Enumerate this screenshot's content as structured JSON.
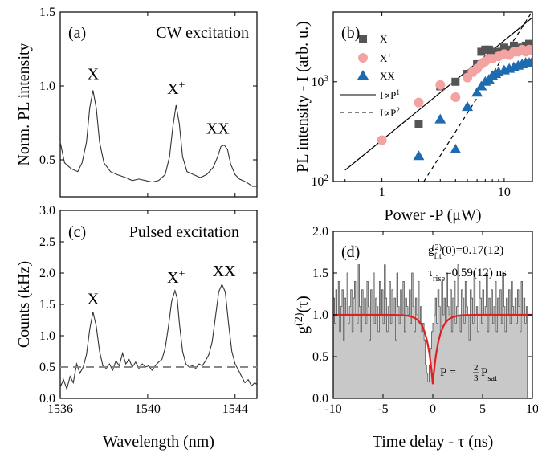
{
  "chart_data": [
    {
      "panel": "(a)",
      "type": "line",
      "title": "CW excitation",
      "ylabel": "Norm. PL intensity",
      "xlim": [
        1536,
        1545
      ],
      "ylim": [
        0.25,
        1.5
      ],
      "yticks": [
        "0.5",
        "1.0",
        "1.5"
      ],
      "peak_labels": [
        {
          "text": "X",
          "x": 1537.5,
          "y": 0.97
        },
        {
          "text": "X",
          "sup": "+",
          "x": 1541.3,
          "y": 0.87
        },
        {
          "text": "XX",
          "x": 1543.5,
          "y": 0.6
        }
      ],
      "series": [
        {
          "values_note": "",
          "x": [
            1536.0,
            1536.2,
            1536.5,
            1536.8,
            1537.0,
            1537.2,
            1537.35,
            1537.5,
            1537.65,
            1537.8,
            1538.0,
            1538.3,
            1538.6,
            1539.0,
            1539.3,
            1539.6,
            1539.9,
            1540.2,
            1540.5,
            1540.8,
            1541.0,
            1541.15,
            1541.3,
            1541.45,
            1541.6,
            1541.8,
            1542.1,
            1542.4,
            1542.7,
            1543.0,
            1543.2,
            1543.35,
            1543.5,
            1543.65,
            1543.8,
            1544.0,
            1544.2,
            1544.5,
            1544.8,
            1545.0
          ],
          "y": [
            0.62,
            0.48,
            0.44,
            0.42,
            0.48,
            0.62,
            0.85,
            0.97,
            0.85,
            0.62,
            0.48,
            0.42,
            0.4,
            0.38,
            0.36,
            0.37,
            0.36,
            0.35,
            0.36,
            0.4,
            0.52,
            0.72,
            0.87,
            0.74,
            0.52,
            0.42,
            0.4,
            0.38,
            0.4,
            0.45,
            0.52,
            0.59,
            0.6,
            0.57,
            0.47,
            0.4,
            0.37,
            0.35,
            0.32,
            0.32
          ]
        }
      ]
    },
    {
      "panel": "(c)",
      "type": "line",
      "title": "Pulsed excitation",
      "xlabel": "Wavelength (nm)",
      "ylabel": "Counts (kHz)",
      "xlim": [
        1536,
        1545
      ],
      "ylim": [
        0.0,
        3.0
      ],
      "xticks": [
        "1536",
        "1540",
        "1544"
      ],
      "yticks": [
        "0.0",
        "0.5",
        "1.0",
        "1.5",
        "2.0",
        "2.5",
        "3.0"
      ],
      "baseline": 0.5,
      "peak_labels": [
        {
          "text": "X",
          "x": 1537.5,
          "y": 1.38
        },
        {
          "text": "X",
          "sup": "+",
          "x": 1541.3,
          "y": 1.72
        },
        {
          "text": "XX",
          "x": 1543.5,
          "y": 1.82
        }
      ],
      "series": [
        {
          "x": [
            1536.0,
            1536.15,
            1536.3,
            1536.45,
            1536.6,
            1536.75,
            1536.9,
            1537.05,
            1537.2,
            1537.35,
            1537.5,
            1537.65,
            1537.8,
            1537.95,
            1538.1,
            1538.25,
            1538.4,
            1538.55,
            1538.7,
            1538.85,
            1539.0,
            1539.15,
            1539.3,
            1539.45,
            1539.6,
            1539.75,
            1539.9,
            1540.05,
            1540.2,
            1540.35,
            1540.5,
            1540.65,
            1540.8,
            1540.95,
            1541.1,
            1541.25,
            1541.35,
            1541.45,
            1541.6,
            1541.75,
            1541.9,
            1542.05,
            1542.2,
            1542.35,
            1542.5,
            1542.65,
            1542.8,
            1542.95,
            1543.1,
            1543.25,
            1543.4,
            1543.55,
            1543.7,
            1543.85,
            1544.0,
            1544.15,
            1544.3,
            1544.45,
            1544.6,
            1544.75,
            1544.9,
            1545.0
          ],
          "y": [
            0.18,
            0.3,
            0.15,
            0.35,
            0.25,
            0.55,
            0.4,
            0.5,
            0.7,
            1.1,
            1.38,
            1.15,
            0.75,
            0.52,
            0.48,
            0.55,
            0.45,
            0.6,
            0.52,
            0.72,
            0.55,
            0.62,
            0.5,
            0.58,
            0.48,
            0.55,
            0.5,
            0.52,
            0.45,
            0.52,
            0.58,
            0.62,
            0.8,
            1.15,
            1.55,
            1.72,
            1.6,
            1.2,
            0.75,
            0.55,
            0.5,
            0.52,
            0.48,
            0.55,
            0.52,
            0.6,
            0.7,
            0.9,
            1.3,
            1.7,
            1.82,
            1.7,
            1.2,
            0.75,
            0.55,
            0.45,
            0.35,
            0.25,
            0.3,
            0.2,
            0.25,
            0.22
          ]
        }
      ]
    },
    {
      "panel": "(b)",
      "type": "scatter",
      "xlabel": "Power -P (μW)",
      "ylabel": "PL intensity - I (arb. u.)",
      "xscale": "log",
      "yscale": "log",
      "xlim": [
        0.4,
        17
      ],
      "ylim": [
        100,
        5000
      ],
      "xticks": [
        "1",
        "10"
      ],
      "yticks": [
        "10",
        "10",
        "10"
      ],
      "ytick_exponents": [
        "2",
        "3",
        ""
      ],
      "legend": [
        {
          "label": "X",
          "marker": "square",
          "color": "#555555"
        },
        {
          "label": "X",
          "sup": "+",
          "marker": "circle",
          "color": "#f4a3a3"
        },
        {
          "label": "XX",
          "marker": "triangle",
          "color": "#1f6bb0"
        },
        {
          "label": "I∝P",
          "sup": "1",
          "style": "solid"
        },
        {
          "label": "I∝P",
          "sup": "2",
          "style": "dashed"
        }
      ],
      "fit_lines": [
        {
          "name": "I∝P^1",
          "points": [
            [
              0.5,
              130
            ],
            [
              17,
              4400
            ]
          ]
        },
        {
          "name": "I∝P^2",
          "points": [
            [
              2.2,
              100
            ],
            [
              17,
              5100
            ]
          ]
        }
      ],
      "series": [
        {
          "name": "X",
          "x": [
            2,
            3,
            4,
            5,
            6,
            6.5,
            7,
            7.5,
            8,
            8.5,
            9,
            10,
            11,
            12,
            13,
            14,
            15,
            16,
            17
          ],
          "y": [
            380,
            900,
            1000,
            1200,
            1500,
            2000,
            2100,
            2100,
            2000,
            1900,
            2000,
            2200,
            2100,
            2300,
            2100,
            2200,
            2300,
            2400,
            2300
          ]
        },
        {
          "name": "X+",
          "x": [
            1,
            2,
            3,
            4,
            5,
            5.5,
            6,
            6.5,
            7,
            7.5,
            8,
            9,
            10,
            11,
            12,
            13,
            14,
            15,
            16,
            17
          ],
          "y": [
            260,
            620,
            930,
            700,
            1100,
            1250,
            1350,
            1500,
            1600,
            1700,
            1700,
            1800,
            1900,
            1850,
            2000,
            2000,
            2100,
            2000,
            2100,
            2050
          ]
        },
        {
          "name": "XX",
          "x": [
            2,
            3,
            4,
            5,
            6,
            6.5,
            7,
            7.5,
            8,
            8.5,
            9,
            10,
            11,
            12,
            13,
            14,
            15,
            16,
            17
          ],
          "y": [
            180,
            420,
            210,
            560,
            780,
            900,
            1000,
            1050,
            1150,
            1200,
            1250,
            1300,
            1350,
            1400,
            1450,
            1500,
            1550,
            1550,
            1600
          ]
        }
      ]
    },
    {
      "panel": "(d)",
      "type": "line",
      "xlabel": "Time delay - τ (ns)",
      "ylabel": "g(2)(τ)",
      "xlim": [
        -10,
        10
      ],
      "ylim": [
        0.0,
        2.0
      ],
      "xticks": [
        "-10",
        "-5",
        "0",
        "5",
        "10"
      ],
      "yticks": [
        "0.0",
        "0.5",
        "1.0",
        "1.5",
        "2.0"
      ],
      "annotations": {
        "g2_fit": "=0.17(12)",
        "tau_rise": "=0.59(12) ns",
        "power": "P = ",
        "power_frac_num": "2",
        "power_frac_den": "3",
        "power_sym": "P",
        "power_sub": "sat"
      },
      "fit": {
        "g0": 0.17,
        "tau_rise_ns": 0.59,
        "color": "#e02020"
      },
      "series": [
        {
          "name": "histogram",
          "x_start": -10,
          "bin_width": 0.125,
          "y": [
            1.2,
            0.9,
            1.3,
            1.0,
            1.4,
            0.8,
            1.1,
            1.3,
            0.7,
            1.2,
            1.0,
            1.5,
            0.9,
            1.1,
            1.3,
            0.8,
            1.2,
            1.4,
            1.0,
            0.9,
            1.6,
            1.1,
            0.8,
            1.3,
            1.0,
            1.2,
            0.9,
            1.4,
            1.1,
            0.7,
            1.3,
            1.0,
            1.5,
            0.9,
            1.2,
            1.1,
            0.8,
            1.4,
            1.0,
            1.3,
            0.9,
            1.6,
            1.2,
            0.8,
            1.1,
            1.4,
            0.9,
            1.3,
            1.0,
            1.2,
            0.7,
            1.5,
            1.1,
            0.9,
            1.3,
            1.0,
            1.4,
            0.8,
            1.2,
            1.1,
            1.0,
            1.3,
            0.9,
            1.5,
            1.1,
            0.8,
            1.2,
            1.0,
            1.4,
            0.9,
            1.1,
            0.8,
            0.9,
            0.7,
            0.4,
            0.3,
            0.2,
            0.4,
            0.6,
            0.8,
            0.9,
            1.0,
            1.2,
            0.9,
            1.3,
            1.1,
            0.8,
            1.4,
            1.0,
            1.2,
            0.9,
            1.5,
            1.1,
            1.0,
            1.3,
            0.8,
            1.2,
            1.4,
            0.9,
            1.1,
            1.6,
            1.0,
            0.8,
            1.3,
            1.2,
            0.9,
            1.4,
            1.1,
            1.0,
            0.7,
            1.3,
            1.2,
            0.9,
            1.5,
            1.0,
            1.1,
            0.8,
            1.4,
            1.2,
            0.9,
            1.3,
            1.0,
            1.1,
            1.5,
            0.8,
            1.2,
            1.0,
            1.3,
            0.9,
            1.1,
            1.4,
            0.8,
            1.2,
            1.0,
            1.3,
            0.9,
            1.5,
            1.1,
            0.8,
            1.2,
            1.0,
            1.3,
            0.9,
            1.4,
            1.1,
            1.0,
            1.2,
            0.9,
            1.3,
            1.1,
            0.8,
            1.4,
            1.0,
            1.2,
            0.9,
            1.1
          ]
        }
      ]
    }
  ]
}
